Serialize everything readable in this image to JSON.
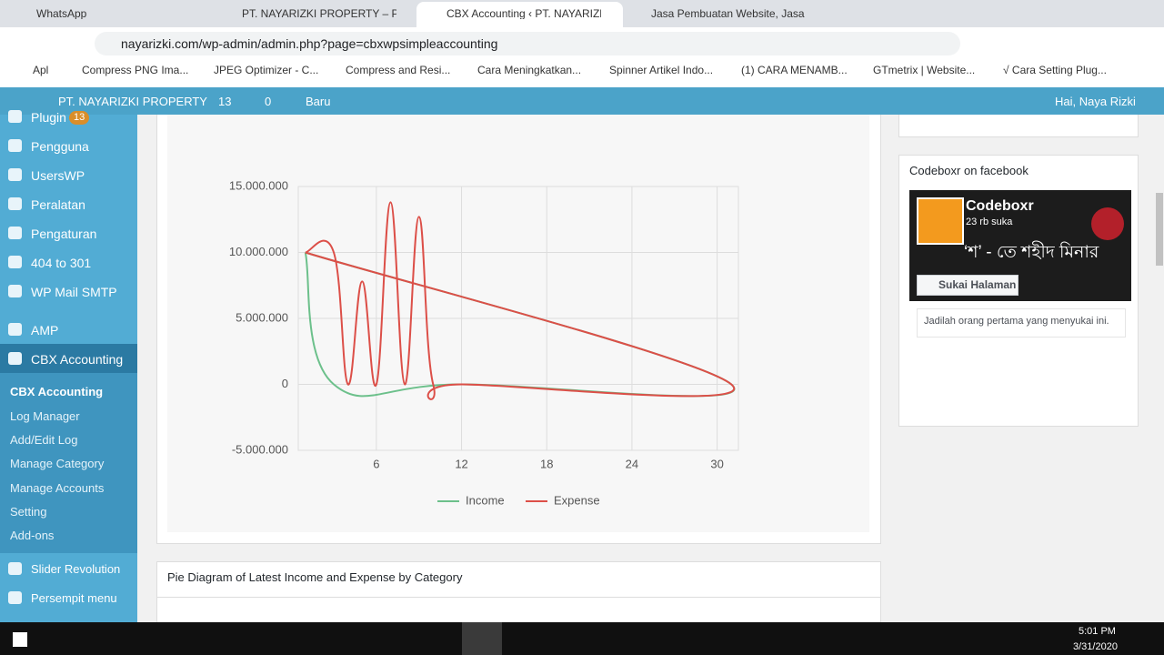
{
  "tabs": [
    "WhatsApp",
    "PT. NAYARIZKI PROPERTY – Prop",
    "CBX Accounting ‹ PT. NAYARIZKI",
    "Jasa Pembuatan Website, Jasa SE"
  ],
  "address": "nayarizki.com/wp-admin/admin.php?page=cbxwpsimpleaccounting",
  "bookmarks": [
    "Apl",
    "Compress PNG Ima...",
    "JPEG Optimizer - C...",
    "Compress and Resi...",
    "Cara Meningkatkan...",
    "Spinner Artikel Indo...",
    "(1) CARA MENAMB...",
    "GTmetrix | Website...",
    "√ Cara Setting Plug..."
  ],
  "admin_bar": {
    "site": "PT. NAYARIZKI PROPERTY",
    "updates": "13",
    "comments": "0",
    "new": "Baru",
    "greeting": "Hai, Naya Rizki"
  },
  "menu": [
    "Plugin",
    "Pengguna",
    "UsersWP",
    "Peralatan",
    "Pengaturan",
    "404 to 301",
    "WP Mail SMTP",
    "AMP",
    "CBX Accounting"
  ],
  "plugin_badge": "13",
  "submenu": [
    "CBX Accounting",
    "Log Manager",
    "Add/Edit Log",
    "Manage Category",
    "Manage Accounts",
    "Setting",
    "Add-ons"
  ],
  "menu_bottom": [
    "Slider Revolution",
    "Persempit menu"
  ],
  "chart_data": {
    "type": "line",
    "series": [
      {
        "name": "Income",
        "color": "#6cc08b",
        "x": [
          1,
          3,
          12,
          31,
          1
        ],
        "values": [
          10000000,
          0,
          0,
          0,
          10000000
        ]
      },
      {
        "name": "Expense",
        "color": "#dc4f48",
        "x": [
          1,
          3,
          4,
          5,
          6,
          7,
          8,
          9,
          10,
          12,
          31,
          1
        ],
        "values": [
          10000000,
          10000000,
          0,
          7800000,
          0,
          13800000,
          0,
          12700000,
          0,
          0,
          0,
          10000000
        ]
      }
    ],
    "xlim": [
      0.5,
      31.5
    ],
    "xticks": [
      6,
      12,
      18,
      24,
      30
    ],
    "ylim": [
      -5000000,
      15000000
    ],
    "yticks": [
      {
        "value": -5000000,
        "label": "-5.000.000"
      },
      {
        "value": 0,
        "label": "0"
      },
      {
        "value": 5000000,
        "label": "5.000.000"
      },
      {
        "value": 10000000,
        "label": "10.000.000"
      },
      {
        "value": 15000000,
        "label": "15.000.000"
      }
    ],
    "grid": true,
    "legend": "bottom"
  },
  "pie_heading": "Pie Diagram of Latest Income and Expense by Category",
  "facebook": {
    "title": "Codeboxr on facebook",
    "page": "Codeboxr",
    "likes": "23 rb suka",
    "banner": "‘শ’ - তে শহীদ মিনার",
    "like_button": "Sukai Halaman",
    "note": "Jadilah orang pertama yang menyukai ini."
  },
  "taskbar": {
    "time": "5:01 PM",
    "date": "3/31/2020"
  }
}
